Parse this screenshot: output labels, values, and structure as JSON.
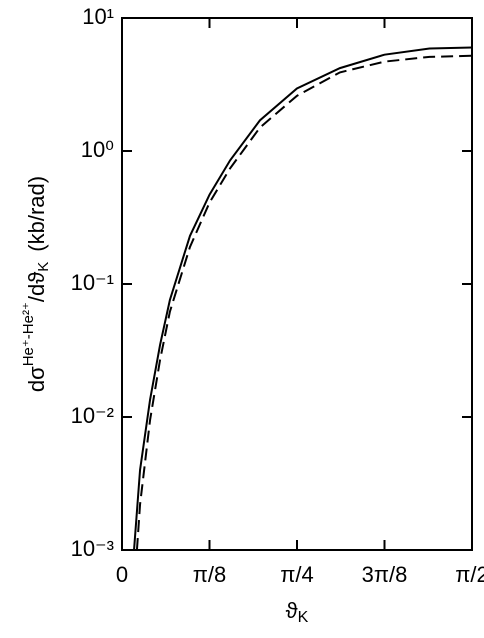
{
  "chart_data": {
    "type": "line",
    "x_label": {
      "main": "ϑ",
      "sub": "K"
    },
    "y_label": {
      "main": "dσ",
      "sup": "He⁺-He²⁺",
      "mid": "/dϑ",
      "sub": "K",
      "unit": "(kb/rad)"
    },
    "xlim": [
      0,
      1.5708
    ],
    "xticks": [
      0,
      {
        "value": 0.3927,
        "label": "π/8"
      },
      {
        "value": 0.7854,
        "label": "π/4"
      },
      {
        "value": 1.1781,
        "label": "3π/8"
      },
      {
        "value": 1.5708,
        "label": "π/2"
      }
    ],
    "ylim": [
      0.001,
      10
    ],
    "ylog": true,
    "yticks": [
      {
        "value": 0.001,
        "label": "10⁻³"
      },
      {
        "value": 0.01,
        "label": "10⁻²"
      },
      {
        "value": 0.1,
        "label": "10⁻¹"
      },
      {
        "value": 1,
        "label": "10⁰"
      },
      {
        "value": 10,
        "label": "10¹"
      }
    ],
    "series": [
      {
        "color": "#000000",
        "dashed": false,
        "x": [
          0.054,
          0.081,
          0.126,
          0.171,
          0.215,
          0.305,
          0.393,
          0.485,
          0.619,
          0.785,
          0.978,
          1.178,
          1.38,
          1.571
        ],
        "values": [
          0.001,
          0.004,
          0.0135,
          0.035,
          0.076,
          0.23,
          0.47,
          0.85,
          1.7,
          2.95,
          4.2,
          5.3,
          5.9,
          6.0
        ]
      },
      {
        "color": "#000000",
        "dashed": true,
        "x": [
          0.067,
          0.081,
          0.126,
          0.171,
          0.215,
          0.305,
          0.393,
          0.485,
          0.619,
          0.785,
          0.978,
          1.178,
          1.38,
          1.571
        ],
        "values": [
          0.001,
          0.0022,
          0.0095,
          0.027,
          0.062,
          0.19,
          0.41,
          0.74,
          1.5,
          2.6,
          3.9,
          4.7,
          5.1,
          5.2
        ]
      }
    ]
  }
}
